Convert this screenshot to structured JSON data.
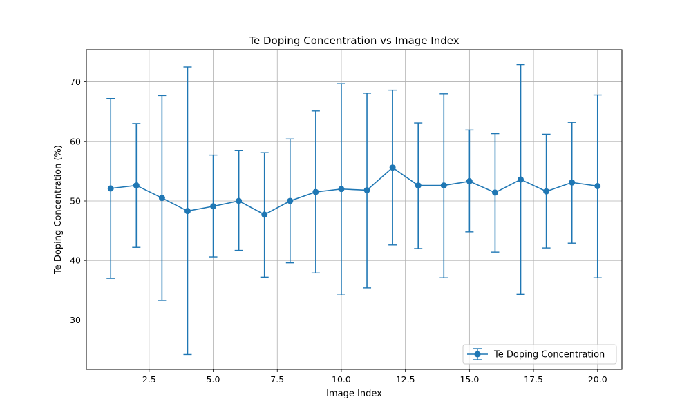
{
  "chart_data": {
    "type": "line",
    "title": "Te Doping Concentration vs Image Index",
    "xlabel": "Image Index",
    "ylabel": "Te Doping Concentration (%)",
    "xlim": [
      0.05,
      20.95
    ],
    "ylim": [
      21.7,
      75.4
    ],
    "grid": true,
    "x_ticks": [
      2.5,
      5.0,
      7.5,
      10.0,
      12.5,
      15.0,
      17.5,
      20.0
    ],
    "x_tick_labels": [
      "2.5",
      "5.0",
      "7.5",
      "10.0",
      "12.5",
      "15.0",
      "17.5",
      "20.0"
    ],
    "y_ticks": [
      30,
      40,
      50,
      60,
      70
    ],
    "y_tick_labels": [
      "30",
      "40",
      "50",
      "60",
      "70"
    ],
    "legend_position": "lower-right",
    "series": [
      {
        "name": "Te Doping Concentration",
        "color": "#1f77b4",
        "marker": "circle",
        "x": [
          1,
          2,
          3,
          4,
          5,
          6,
          7,
          8,
          9,
          10,
          11,
          12,
          13,
          14,
          15,
          16,
          17,
          18,
          19,
          20
        ],
        "y": [
          52.1,
          52.6,
          50.5,
          48.3,
          49.1,
          50.0,
          47.7,
          50.0,
          51.5,
          52.0,
          51.8,
          55.6,
          52.6,
          52.6,
          53.3,
          51.4,
          53.6,
          51.6,
          53.1,
          52.5
        ],
        "yerr_low": [
          37.0,
          42.2,
          33.3,
          24.2,
          40.6,
          41.7,
          37.2,
          39.6,
          37.9,
          34.2,
          35.4,
          42.6,
          42.0,
          37.1,
          44.8,
          41.4,
          34.3,
          42.1,
          42.9,
          37.1
        ],
        "yerr_high": [
          67.2,
          63.0,
          67.7,
          72.5,
          57.7,
          58.5,
          58.1,
          60.4,
          65.1,
          69.7,
          68.1,
          68.6,
          63.1,
          68.0,
          61.9,
          61.3,
          72.9,
          61.2,
          63.2,
          67.8
        ]
      }
    ]
  }
}
